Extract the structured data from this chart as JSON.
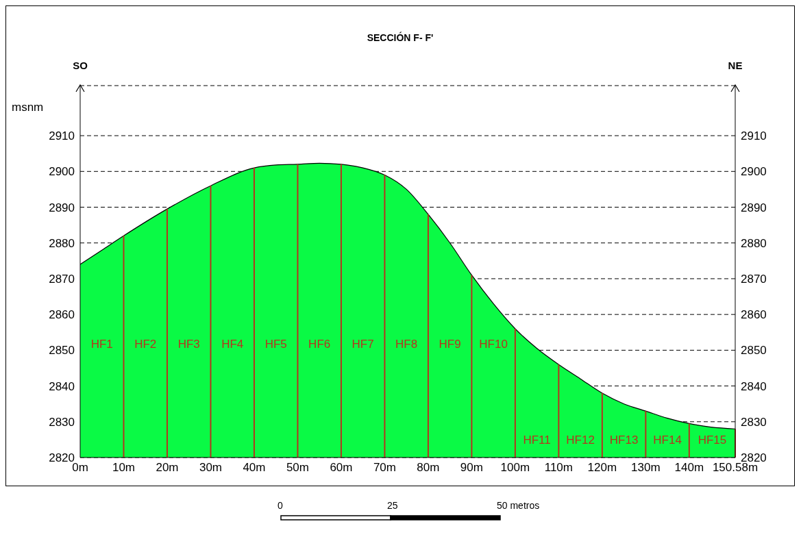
{
  "chart_data": {
    "type": "area",
    "title": "SECCIÓN F- F'",
    "ylabel": "msnm",
    "x": [
      0,
      5,
      10,
      20,
      30,
      40,
      45,
      50,
      55,
      60,
      65,
      70,
      75,
      80,
      85,
      90,
      95,
      100,
      105,
      110,
      115,
      120,
      125,
      130,
      135,
      140,
      145,
      150.58
    ],
    "series": [
      {
        "color": "#0afa45",
        "values": [
          2874,
          2878,
          2882,
          2889.5,
          2896,
          2901,
          2901.8,
          2902,
          2902.3,
          2902,
          2901,
          2899,
          2895,
          2888,
          2880,
          2871,
          2863,
          2856,
          2850.5,
          2846,
          2842,
          2838,
          2835,
          2833,
          2831,
          2829.5,
          2828.5,
          2828
        ]
      }
    ],
    "xlim": [
      0,
      150.58
    ],
    "xticks": [
      {
        "value": 0,
        "label": "0m"
      },
      {
        "value": 10,
        "label": "10m"
      },
      {
        "value": 20,
        "label": "20m"
      },
      {
        "value": 30,
        "label": "30m"
      },
      {
        "value": 40,
        "label": "40m"
      },
      {
        "value": 50,
        "label": "50m"
      },
      {
        "value": 60,
        "label": "60m"
      },
      {
        "value": 70,
        "label": "70m"
      },
      {
        "value": 80,
        "label": "80m"
      },
      {
        "value": 90,
        "label": "90m"
      },
      {
        "value": 100,
        "label": "100m"
      },
      {
        "value": 110,
        "label": "110m"
      },
      {
        "value": 120,
        "label": "120m"
      },
      {
        "value": 130,
        "label": "130m"
      },
      {
        "value": 140,
        "label": "140m"
      },
      {
        "value": 150.58,
        "label": "150.58m"
      }
    ],
    "ylim": [
      2820,
      2924
    ],
    "yticks": [
      2820,
      2830,
      2840,
      2850,
      2860,
      2870,
      2880,
      2890,
      2900,
      2910
    ],
    "y2lim": [
      2820,
      2924
    ],
    "y2ticks": [
      2820,
      2830,
      2840,
      2850,
      2860,
      2870,
      2880,
      2890,
      2900,
      2910
    ],
    "grid": "y",
    "line_style": "dashed",
    "ref_lines": [
      {
        "axis": "x",
        "value": 10,
        "color": "#b5341e",
        "label": "HF1"
      },
      {
        "axis": "x",
        "value": 20,
        "color": "#b5341e",
        "label": "HF2"
      },
      {
        "axis": "x",
        "value": 30,
        "color": "#b5341e",
        "label": "HF3"
      },
      {
        "axis": "x",
        "value": 40,
        "color": "#b5341e",
        "label": "HF4"
      },
      {
        "axis": "x",
        "value": 50,
        "color": "#b5341e",
        "label": "HF5"
      },
      {
        "axis": "x",
        "value": 60,
        "color": "#b5341e",
        "label": "HF6"
      },
      {
        "axis": "x",
        "value": 70,
        "color": "#b5341e",
        "label": "HF7"
      },
      {
        "axis": "x",
        "value": 80,
        "color": "#b5341e",
        "label": "HF8"
      },
      {
        "axis": "x",
        "value": 90,
        "color": "#b5341e",
        "label": "HF9"
      },
      {
        "axis": "x",
        "value": 100,
        "color": "#b5341e",
        "label": "HF10"
      },
      {
        "axis": "x",
        "value": 110,
        "color": "#b5341e",
        "label": "HF11"
      },
      {
        "axis": "x",
        "value": 120,
        "color": "#b5341e",
        "label": "HF12"
      },
      {
        "axis": "x",
        "value": 130,
        "color": "#b5341e",
        "label": "HF13"
      },
      {
        "axis": "x",
        "value": 140,
        "color": "#b5341e",
        "label": "HF14"
      },
      {
        "axis": "x",
        "value": 150.58,
        "color": "#b5341e",
        "label": "HF15"
      }
    ],
    "annotations": [
      "SO",
      "NE",
      "0",
      "25",
      "50 metros"
    ]
  }
}
